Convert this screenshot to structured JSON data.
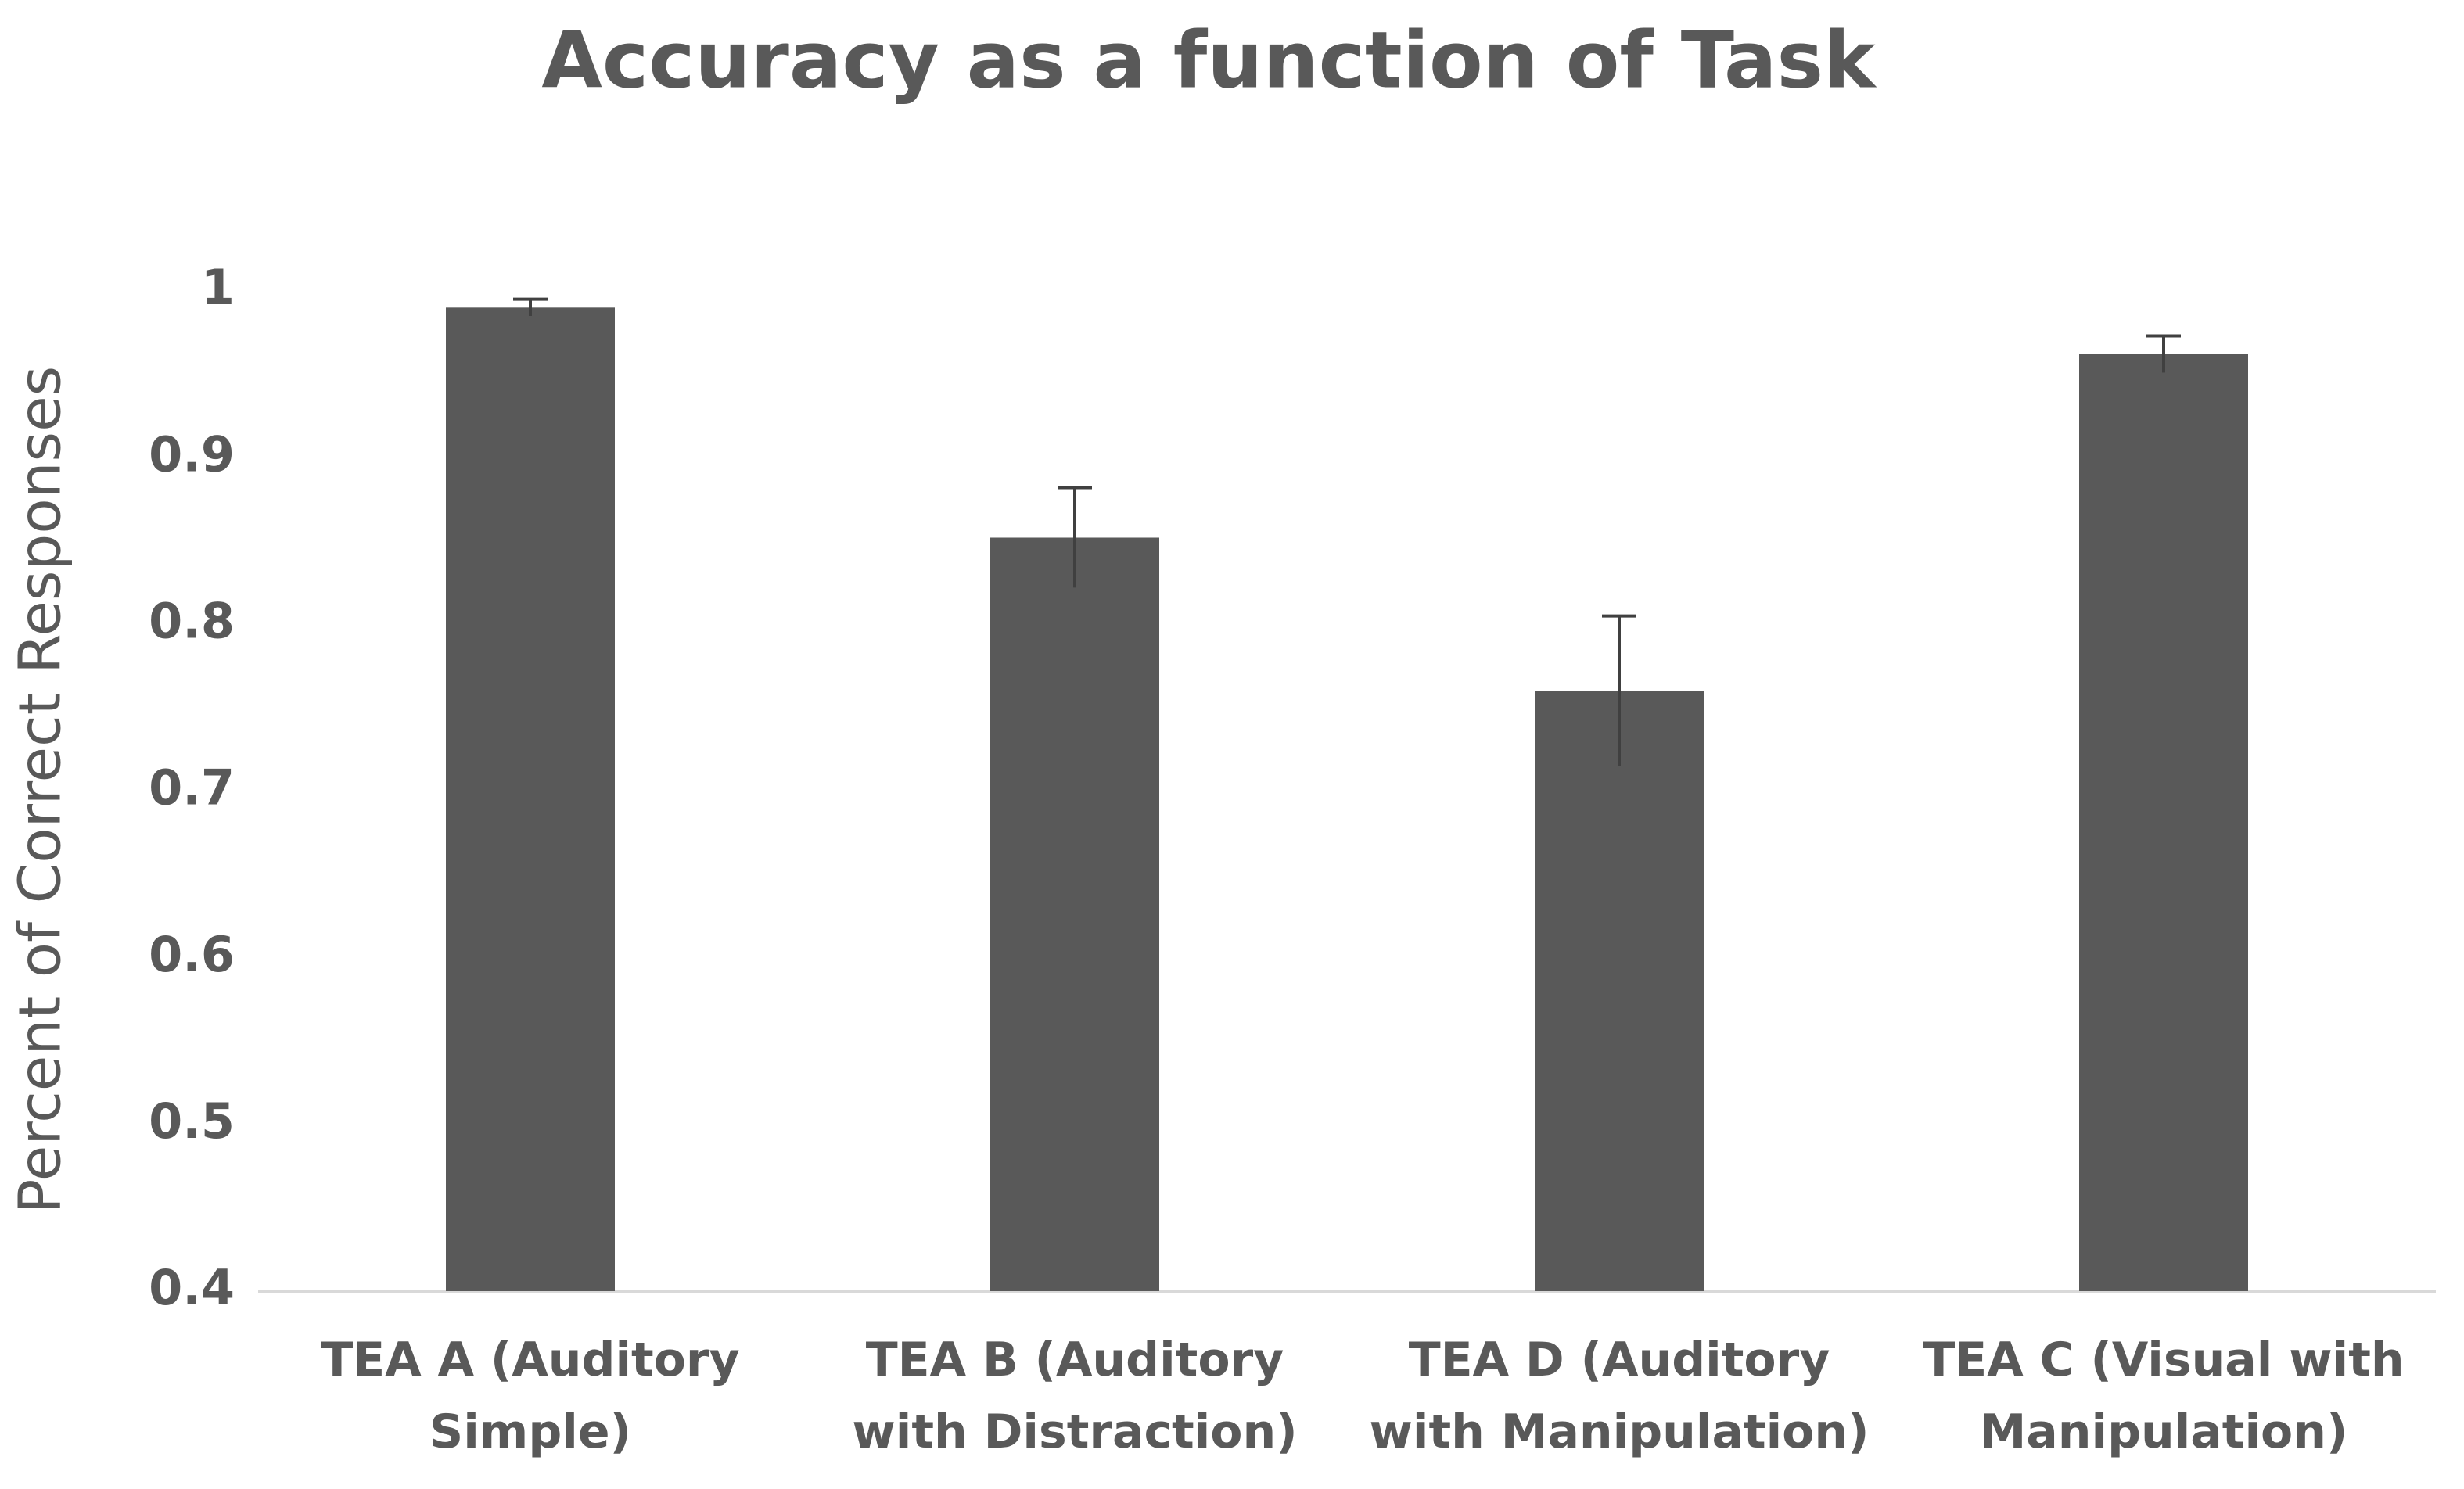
{
  "chart_data": {
    "type": "bar",
    "title": "Accuracy as a function of Task",
    "ylabel": "Percent of Correct Responses",
    "categories": [
      "TEA A (Auditory Simple)",
      "TEA B (Auditory with Distraction)",
      "TEA D (Auditory with Manipulation)",
      "TEA C (Visual with Manipulation)"
    ],
    "values": [
      0.99,
      0.852,
      0.76,
      0.962
    ],
    "errors": [
      0.005,
      0.03,
      0.045,
      0.011
    ],
    "color": "#595959",
    "ylim": [
      0.4,
      1
    ],
    "yticks": [
      0.4,
      0.5,
      0.6,
      0.7,
      0.8,
      0.9,
      1
    ],
    "grid": false
  }
}
